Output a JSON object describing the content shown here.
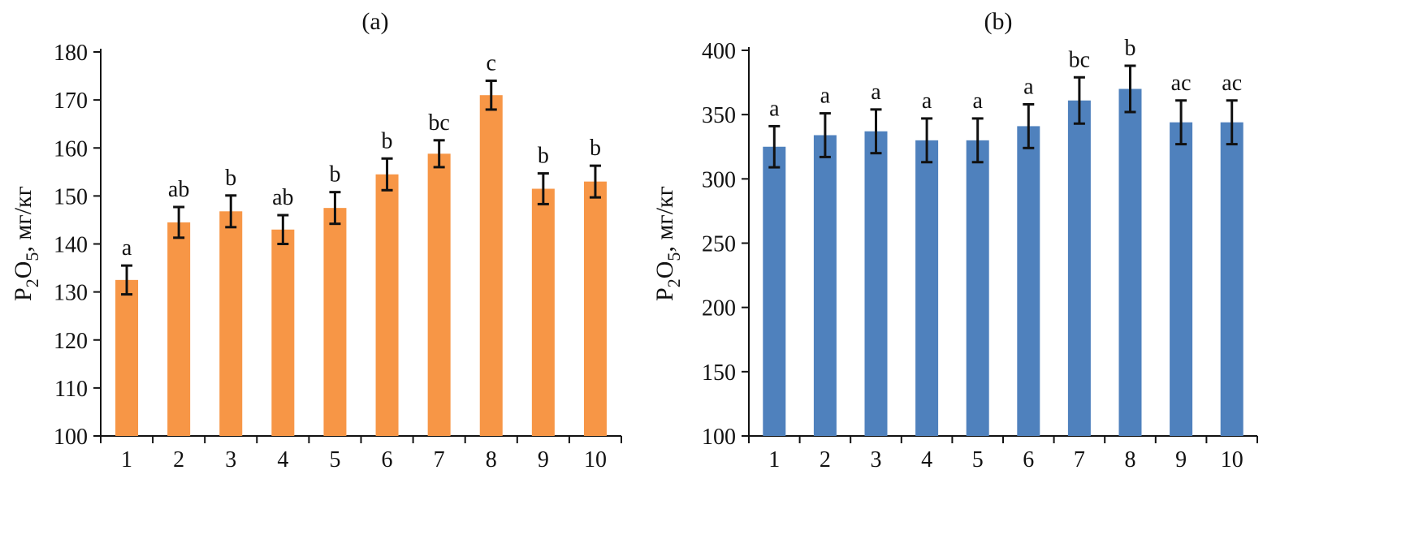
{
  "chart_data": [
    {
      "panel_label": "(a)",
      "type": "bar",
      "ylabel_main": "P",
      "ylabel_sub1": "2",
      "ylabel_mid": "O",
      "ylabel_sub2": "5",
      "ylabel_unit": ", мг/кг",
      "categories": [
        "1",
        "2",
        "3",
        "4",
        "5",
        "6",
        "7",
        "8",
        "9",
        "10"
      ],
      "values": [
        132.5,
        144.5,
        146.8,
        143.0,
        147.5,
        154.5,
        158.8,
        171.0,
        151.5,
        153.0
      ],
      "errors": [
        3.0,
        3.2,
        3.3,
        3.0,
        3.3,
        3.3,
        2.8,
        3.0,
        3.2,
        3.3
      ],
      "letters": [
        "a",
        "ab",
        "b",
        "ab",
        "b",
        "b",
        "bc",
        "c",
        "b",
        "b"
      ],
      "ylim": [
        100,
        180
      ],
      "yticks": [
        100,
        110,
        120,
        130,
        140,
        150,
        160,
        170,
        180
      ],
      "color": "#F79646"
    },
    {
      "panel_label": "(b)",
      "type": "bar",
      "ylabel_main": "P",
      "ylabel_sub1": "2",
      "ylabel_mid": "O",
      "ylabel_sub2": "5",
      "ylabel_unit": ", мг/кг",
      "categories": [
        "1",
        "2",
        "3",
        "4",
        "5",
        "6",
        "7",
        "8",
        "9",
        "10"
      ],
      "values": [
        325,
        334,
        337,
        330,
        330,
        341,
        361,
        370,
        344,
        344
      ],
      "errors": [
        16,
        17,
        17,
        17,
        17,
        17,
        18,
        18,
        17,
        17
      ],
      "letters": [
        "a",
        "a",
        "a",
        "a",
        "a",
        "a",
        "bc",
        "b",
        "ac",
        "ac"
      ],
      "ylim": [
        100,
        400
      ],
      "yticks": [
        100,
        150,
        200,
        250,
        300,
        350,
        400
      ],
      "color": "#4F81BD"
    }
  ]
}
